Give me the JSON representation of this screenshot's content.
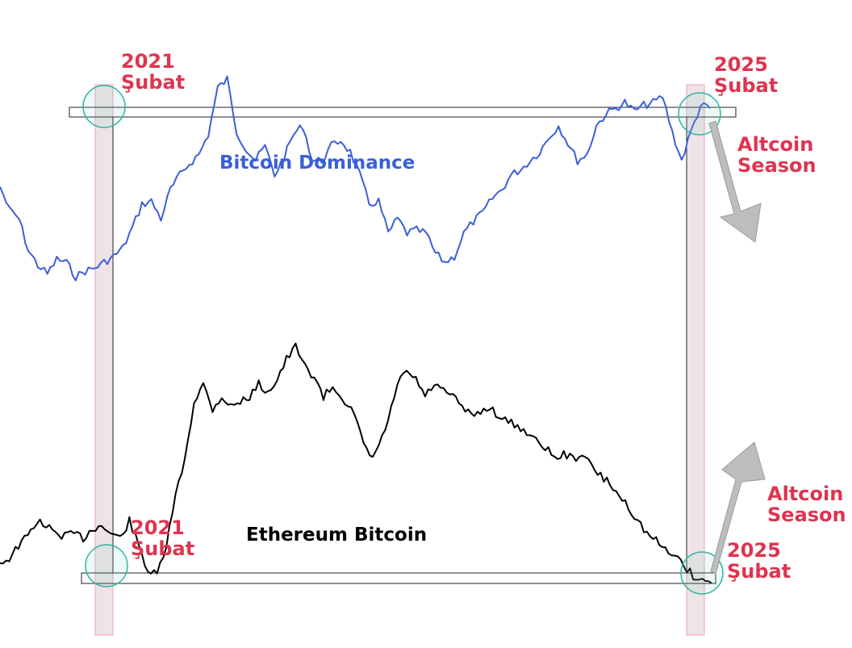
{
  "colors": {
    "btc_line": "#3a5fd9",
    "eth_line": "#000000",
    "annotation_red": "#e0334f",
    "circle": "#2fb5a3",
    "band_fill": "#ead9de",
    "band_stroke": "#f0a0b4",
    "arrow": "#bdbdbd"
  },
  "chart_data": {
    "type": "line",
    "title": "",
    "xlabel": "",
    "ylabel": "",
    "grid": false,
    "legend": "none",
    "series": [
      {
        "name": "Bitcoin Dominance",
        "color": "#3a5fd9",
        "y_relative": [
          0.51,
          0.43,
          0.4,
          0.29,
          0.24,
          0.21,
          0.26,
          0.25,
          0.2,
          0.22,
          0.23,
          0.25,
          0.27,
          0.3,
          0.37,
          0.45,
          0.46,
          0.4,
          0.5,
          0.55,
          0.59,
          0.62,
          0.69,
          0.85,
          0.88,
          0.7,
          0.64,
          0.6,
          0.65,
          0.55,
          0.61,
          0.69,
          0.72,
          0.6,
          0.6,
          0.65,
          0.67,
          0.63,
          0.55,
          0.45,
          0.46,
          0.35,
          0.4,
          0.35,
          0.36,
          0.35,
          0.28,
          0.25,
          0.27,
          0.35,
          0.39,
          0.42,
          0.47,
          0.5,
          0.55,
          0.57,
          0.6,
          0.63,
          0.68,
          0.72,
          0.66,
          0.6,
          0.62,
          0.72,
          0.76,
          0.78,
          0.8,
          0.77,
          0.79,
          0.8,
          0.82,
          0.7,
          0.6,
          0.7,
          0.79,
          0.78
        ]
      },
      {
        "name": "Ethereum Bitcoin",
        "color": "#000000",
        "y_relative": [
          0.13,
          0.15,
          0.2,
          0.24,
          0.3,
          0.28,
          0.25,
          0.24,
          0.25,
          0.23,
          0.27,
          0.28,
          0.25,
          0.23,
          0.3,
          0.2,
          0.1,
          0.08,
          0.2,
          0.4,
          0.55,
          0.78,
          0.85,
          0.75,
          0.8,
          0.76,
          0.78,
          0.8,
          0.85,
          0.82,
          0.87,
          0.95,
          1.0,
          0.92,
          0.88,
          0.8,
          0.84,
          0.8,
          0.75,
          0.65,
          0.55,
          0.6,
          0.7,
          0.85,
          0.9,
          0.87,
          0.8,
          0.85,
          0.82,
          0.8,
          0.76,
          0.72,
          0.74,
          0.76,
          0.72,
          0.7,
          0.68,
          0.66,
          0.62,
          0.6,
          0.55,
          0.57,
          0.55,
          0.57,
          0.52,
          0.48,
          0.45,
          0.4,
          0.36,
          0.3,
          0.25,
          0.22,
          0.18,
          0.17,
          0.12,
          0.08,
          0.06,
          0.05
        ]
      }
    ],
    "annotations": {
      "btc_start": [
        "2021",
        "Şubat"
      ],
      "btc_end": [
        "2025",
        "Şubat"
      ],
      "btc_arrow": [
        "Altcoin",
        "Season"
      ],
      "eth_start": [
        "2021",
        "Şubat"
      ],
      "eth_end": [
        "2025",
        "Şubat"
      ],
      "eth_arrow": [
        "Altcoin",
        "Season"
      ]
    }
  }
}
